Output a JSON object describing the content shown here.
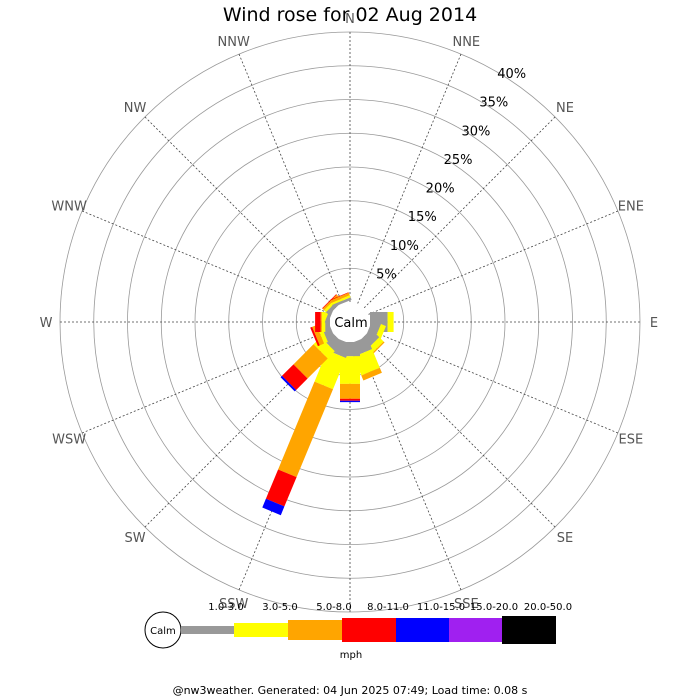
{
  "title": "Wind rose for 02 Aug 2014",
  "footer": "@nw3weather. Generated: 04 Jun 2025 07:49; Load time: 0.08 s",
  "calm_label": "Calm",
  "unit": "mph",
  "chart_data": {
    "type": "wind-rose",
    "title": "Wind rose for 02 Aug 2014",
    "directions": [
      "N",
      "NNE",
      "NE",
      "ENE",
      "E",
      "ESE",
      "SE",
      "SSE",
      "S",
      "SSW",
      "SW",
      "WSW",
      "W",
      "WNW",
      "NW",
      "NNW"
    ],
    "percent_ticks": [
      "5%",
      "10%",
      "15%",
      "20%",
      "25%",
      "30%",
      "35%",
      "40%"
    ],
    "rmax_percent": 40,
    "calm_percent": 3.3,
    "speed_bins": [
      {
        "label": "1.0-3.0",
        "color": "#999999"
      },
      {
        "label": "3.0-5.0",
        "color": "#ffff00"
      },
      {
        "label": "5.0-8.0",
        "color": "#ffa500"
      },
      {
        "label": "8.0-11.0",
        "color": "#ff0000"
      },
      {
        "label": "11.0-15.0",
        "color": "#0000ff"
      },
      {
        "label": "15.0-20.0",
        "color": "#a020f0"
      },
      {
        "label": "20.0-50.0",
        "color": "#000000"
      }
    ],
    "frequencies": {
      "N": [
        0,
        0,
        0,
        0,
        0,
        0,
        0
      ],
      "NNE": [
        0,
        0,
        0,
        0,
        0,
        0,
        0
      ],
      "NE": [
        0,
        0,
        0,
        0,
        0,
        0,
        0
      ],
      "ENE": [
        0,
        0,
        0,
        0,
        0,
        0,
        0
      ],
      "E": [
        2.6,
        0.9,
        0,
        0,
        0,
        0,
        0
      ],
      "ESE": [
        1.4,
        0.8,
        0,
        0,
        0,
        0,
        0
      ],
      "SE": [
        1.7,
        0.9,
        0.2,
        0,
        0,
        0,
        0
      ],
      "SSE": [
        2.0,
        3.0,
        0.8,
        0,
        0,
        0,
        0
      ],
      "S": [
        2.1,
        4.1,
        2.2,
        0.3,
        0.2,
        0,
        0
      ],
      "SSW": [
        2.2,
        5.0,
        14.1,
        4.7,
        1.4,
        0,
        0
      ],
      "SW": [
        1.7,
        1.5,
        4.2,
        2.4,
        0.3,
        0,
        0
      ],
      "WSW": [
        1.2,
        0.6,
        0.7,
        0.3,
        0,
        0,
        0
      ],
      "W": [
        0.7,
        0.5,
        0.2,
        0.8,
        0,
        0,
        0
      ],
      "WNW": [
        0.5,
        0.4,
        0,
        0,
        0,
        0,
        0
      ],
      "NW": [
        0.6,
        0.4,
        0.3,
        0.1,
        0,
        0,
        0
      ],
      "NNW": [
        0.4,
        0.3,
        0.4,
        0.1,
        0,
        0,
        0
      ]
    }
  }
}
